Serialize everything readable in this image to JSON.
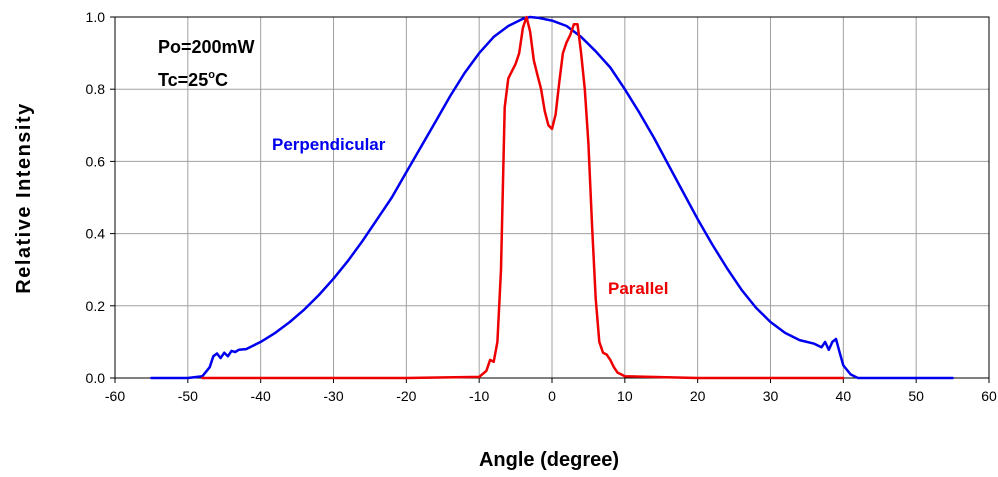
{
  "chart_data": {
    "type": "line",
    "xlabel": "Angle (degree)",
    "ylabel": "Relative Intensity",
    "xlim": [
      -60,
      60
    ],
    "ylim": [
      0,
      1.0
    ],
    "xticks": [
      -60,
      -50,
      -40,
      -30,
      -20,
      -10,
      0,
      10,
      20,
      30,
      40,
      50,
      60
    ],
    "yticks": [
      "0.0",
      "0.2",
      "0.4",
      "0.6",
      "0.8",
      "1.0"
    ],
    "grid": true,
    "annotations": [
      {
        "text": "Po=200mW"
      },
      {
        "text_main": "Tc=25",
        "text_sup": "o",
        "text_unit": "C"
      }
    ],
    "series": [
      {
        "name": "Perpendicular",
        "color": "#0000ee",
        "x": [
          -55,
          -50,
          -48,
          -47,
          -46.5,
          -46,
          -45.5,
          -45,
          -44.5,
          -44,
          -43.5,
          -43,
          -42,
          -40,
          -38,
          -36,
          -34,
          -32,
          -30,
          -28,
          -26,
          -24,
          -22,
          -20,
          -18,
          -16,
          -14,
          -12,
          -10,
          -8,
          -6,
          -4,
          -3,
          -2,
          0,
          2,
          4,
          6,
          8,
          10,
          12,
          14,
          16,
          18,
          20,
          22,
          24,
          26,
          28,
          30,
          32,
          34,
          36,
          37,
          37.5,
          38,
          38.5,
          39,
          39.5,
          40,
          41,
          42,
          45,
          50,
          55
        ],
        "y": [
          0.0,
          0.0,
          0.005,
          0.03,
          0.06,
          0.068,
          0.055,
          0.07,
          0.06,
          0.075,
          0.072,
          0.078,
          0.08,
          0.1,
          0.125,
          0.155,
          0.19,
          0.23,
          0.275,
          0.325,
          0.38,
          0.44,
          0.5,
          0.57,
          0.64,
          0.71,
          0.78,
          0.845,
          0.9,
          0.945,
          0.975,
          0.995,
          1.0,
          0.998,
          0.99,
          0.975,
          0.945,
          0.905,
          0.86,
          0.8,
          0.735,
          0.665,
          0.59,
          0.515,
          0.44,
          0.37,
          0.305,
          0.245,
          0.195,
          0.155,
          0.125,
          0.105,
          0.095,
          0.085,
          0.1,
          0.078,
          0.1,
          0.108,
          0.07,
          0.035,
          0.01,
          0.0,
          0.0,
          0.0,
          0.0
        ]
      },
      {
        "name": "Parallel",
        "color": "#ee0000",
        "x": [
          -48,
          -20,
          -10,
          -9,
          -8.5,
          -8,
          -7.5,
          -7,
          -6.5,
          -6,
          -5.5,
          -5,
          -4.5,
          -4,
          -3.5,
          -3,
          -2.5,
          -2,
          -1.5,
          -1,
          -0.5,
          0,
          0.5,
          1,
          1.5,
          2,
          2.5,
          3,
          3.5,
          4,
          4.5,
          5,
          5.5,
          6,
          6.5,
          7,
          7.5,
          8,
          8.5,
          9,
          9.5,
          10,
          20,
          40
        ],
        "y": [
          0.0,
          0.0,
          0.003,
          0.02,
          0.05,
          0.045,
          0.1,
          0.3,
          0.75,
          0.83,
          0.85,
          0.87,
          0.9,
          0.97,
          1.0,
          0.96,
          0.88,
          0.84,
          0.8,
          0.74,
          0.7,
          0.69,
          0.73,
          0.82,
          0.9,
          0.93,
          0.95,
          0.98,
          0.98,
          0.9,
          0.8,
          0.65,
          0.42,
          0.22,
          0.1,
          0.07,
          0.065,
          0.05,
          0.03,
          0.015,
          0.01,
          0.005,
          0.0,
          0.0
        ]
      }
    ]
  }
}
